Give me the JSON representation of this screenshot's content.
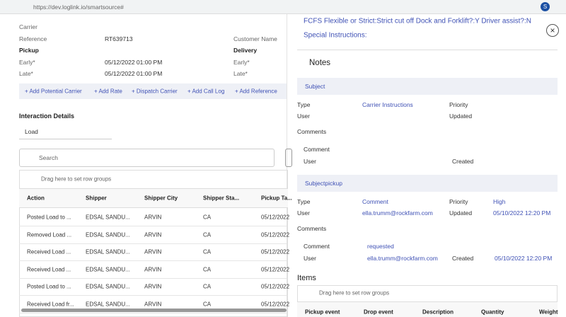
{
  "browser": {
    "url": "https://dev.loglink.io/smartsource#",
    "avatar": "S"
  },
  "load_details": {
    "carrier_label": "Carrier",
    "reference_label": "Reference",
    "reference": "RT639713",
    "customer_name_label": "Customer Name",
    "pickup": "Pickup",
    "delivery": "Delivery",
    "pickup_early_label": "Early*",
    "pickup_early": "05/12/2022 01:00 PM",
    "delivery_early_label": "Early*",
    "pickup_late_label": "Late*",
    "pickup_late": "05/12/2022 01:00 PM",
    "delivery_late_label": "Late*"
  },
  "actions": [
    "+ Add Potential Carrier",
    "+ Add Rate",
    "+ Dispatch Carrier",
    "+ Add Call Log",
    "+ Add Reference"
  ],
  "interaction": {
    "title": "Interaction Details",
    "filter": "Load",
    "search_placeholder": "Search",
    "group_hint": "Drag here to set row groups",
    "columns": [
      "Action",
      "Shipper",
      "Shipper City",
      "Shipper Sta...",
      "Pickup Ta..."
    ],
    "rows": [
      [
        "Posted Load to ...",
        "EDSAL SANDU...",
        "ARVIN",
        "CA",
        "05/12/2022"
      ],
      [
        "Removed Load ...",
        "EDSAL SANDU...",
        "ARVIN",
        "CA",
        "05/12/2022"
      ],
      [
        "Received Load ...",
        "EDSAL SANDU...",
        "ARVIN",
        "CA",
        "05/12/2022"
      ],
      [
        "Received Load ...",
        "EDSAL SANDU...",
        "ARVIN",
        "CA",
        "05/12/2022"
      ],
      [
        "Posted Load to ...",
        "EDSAL SANDU...",
        "ARVIN",
        "CA",
        "05/12/2022"
      ],
      [
        "Received Load fr...",
        "EDSAL SANDU...",
        "ARVIN",
        "CA",
        "05/12/2022"
      ]
    ]
  },
  "notes_panel": {
    "instructions": "FCFS Flexible or Strict:Strict cut off Dock and Forklift?:Y Driver assist?:N",
    "special_instructions": "Special Instructions:",
    "title": "Notes",
    "notes": [
      {
        "subject": "Subject",
        "type_label": "Type",
        "type": "Carrier Instructions",
        "priority_label": "Priority",
        "user_label": "User",
        "updated_label": "Updated",
        "comments_label": "Comments",
        "comment_label": "Comment",
        "comment_user_label": "User",
        "created_label": "Created"
      },
      {
        "subject": "Subjectpickup",
        "type_label": "Type",
        "type": "Comment",
        "priority_label": "Priority",
        "priority": "High",
        "user_label": "User",
        "user": "ella.trumm@rockfarm.com",
        "updated_label": "Updated",
        "updated": "05/10/2022 12:20 PM",
        "comments_label": "Comments",
        "comment_label": "Comment",
        "comment": "requested",
        "comment_user_label": "User",
        "comment_user": "ella.trumm@rockfarm.com",
        "created_label": "Created",
        "created": "05/10/2022 12:20 PM"
      }
    ],
    "items": {
      "title": "Items",
      "group_hint": "Drag here to set row groups",
      "columns": [
        "Pickup event",
        "Drop event",
        "Description",
        "Quantity",
        "Weight"
      ]
    }
  }
}
